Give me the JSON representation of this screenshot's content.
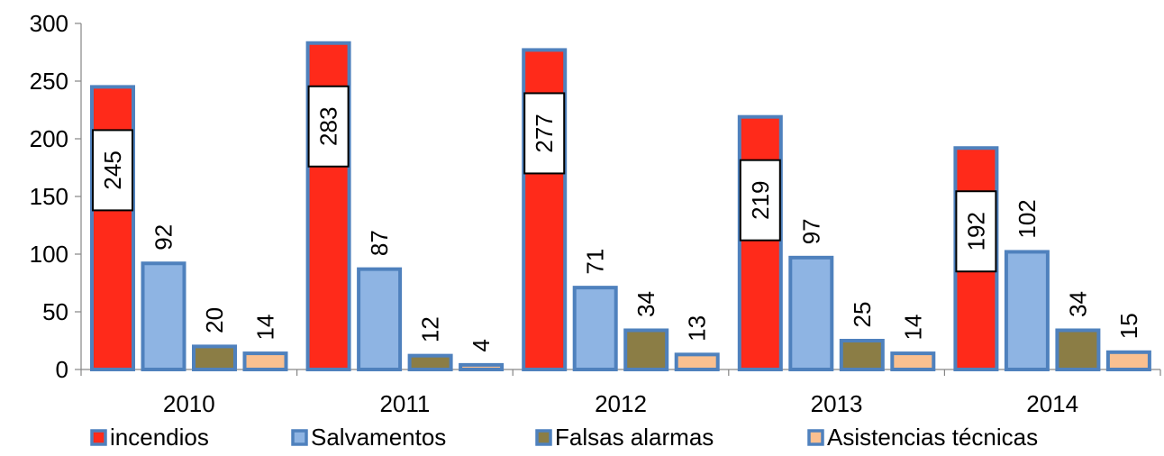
{
  "chart_data": {
    "type": "bar",
    "categories": [
      "2010",
      "2011",
      "2012",
      "2013",
      "2014"
    ],
    "series": [
      {
        "name": "incendios",
        "values": [
          245,
          283,
          277,
          219,
          192
        ],
        "color": "#ff2a1a",
        "label_style": "boxed"
      },
      {
        "name": "Salvamentos",
        "values": [
          92,
          87,
          71,
          97,
          102
        ],
        "color": "#8eb4e3",
        "label_style": "plain"
      },
      {
        "name": "Falsas alarmas",
        "values": [
          20,
          12,
          34,
          25,
          34
        ],
        "color": "#8b7d45",
        "label_style": "plain"
      },
      {
        "name": "Asistencias técnicas",
        "values": [
          14,
          4,
          13,
          14,
          15
        ],
        "color": "#fac090",
        "label_style": "plain"
      }
    ],
    "bar_border_color": "#4f81bd",
    "ylim": [
      0,
      300
    ],
    "yticks": [
      0,
      50,
      100,
      150,
      200,
      250,
      300
    ],
    "ytick_labels": [
      "0",
      "50",
      "100",
      "150",
      "200",
      "250",
      "300"
    ],
    "data_labels_rotated": true,
    "grid": false,
    "legend_position": "bottom",
    "xlabel": "",
    "ylabel": ""
  }
}
